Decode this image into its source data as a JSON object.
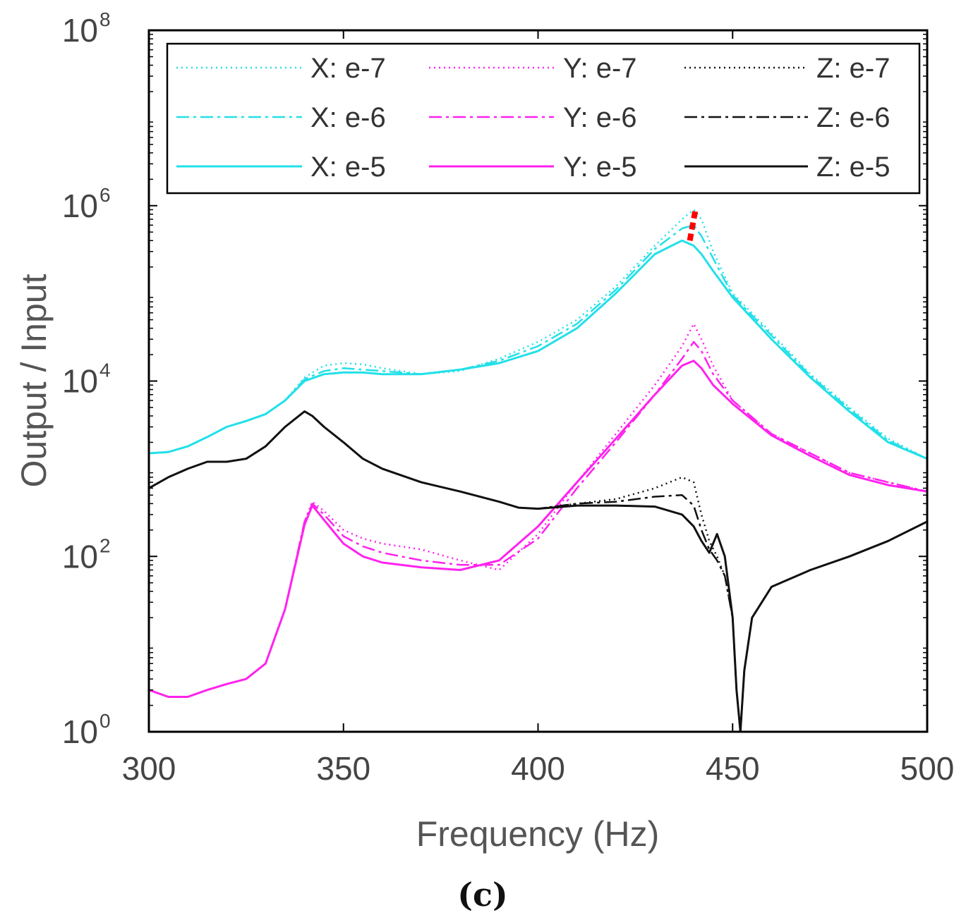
{
  "chart_data": {
    "type": "line",
    "title": "",
    "caption": "(c)",
    "xlabel": "Frequency (Hz)",
    "ylabel": "Output / Input",
    "xlim": [
      300,
      500
    ],
    "ylim": [
      1,
      100000000
    ],
    "yscale": "log",
    "xticks": [
      "300",
      "350",
      "400",
      "450",
      "500"
    ],
    "yticks": [
      {
        "base": "10",
        "exp": "0",
        "value": 1
      },
      {
        "base": "10",
        "exp": "2",
        "value": 100
      },
      {
        "base": "10",
        "exp": "4",
        "value": 10000
      },
      {
        "base": "10",
        "exp": "6",
        "value": 1000000
      },
      {
        "base": "10",
        "exp": "8",
        "value": 100000000
      }
    ],
    "grid": false,
    "legend_position": "top",
    "colors": {
      "X": "#22e0e8",
      "Y": "#ff22ee",
      "Z": "#111111",
      "marker": "#ff0000",
      "axis": "#000000"
    },
    "series": [
      {
        "name": "X: e-7",
        "axis": "X",
        "style": "dotted",
        "x": [
          300,
          305,
          310,
          315,
          320,
          325,
          330,
          335,
          340,
          345,
          350,
          355,
          360,
          370,
          380,
          390,
          400,
          410,
          420,
          430,
          437,
          440,
          442,
          445,
          450,
          460,
          470,
          480,
          490,
          500
        ],
        "y": [
          1500,
          1550,
          1800,
          2300,
          3000,
          3500,
          4200,
          6000,
          11000,
          15000,
          16000,
          15500,
          14000,
          12000,
          13000,
          18000,
          28000,
          50000,
          120000,
          350000,
          700000,
          900000,
          700000,
          300000,
          100000,
          35000,
          12000,
          5000,
          2200,
          1300
        ]
      },
      {
        "name": "X: e-6",
        "axis": "X",
        "style": "dashdot",
        "x": [
          300,
          305,
          310,
          315,
          320,
          325,
          330,
          335,
          340,
          345,
          350,
          355,
          360,
          370,
          380,
          390,
          400,
          410,
          420,
          430,
          437,
          440,
          442,
          445,
          450,
          460,
          470,
          480,
          490,
          500
        ],
        "y": [
          1500,
          1550,
          1800,
          2300,
          3000,
          3500,
          4200,
          6000,
          10500,
          13000,
          14000,
          13500,
          13000,
          12000,
          13500,
          17000,
          25000,
          45000,
          110000,
          320000,
          550000,
          600000,
          450000,
          250000,
          95000,
          33000,
          11500,
          4800,
          2100,
          1300
        ]
      },
      {
        "name": "X: e-5",
        "axis": "X",
        "style": "solid",
        "x": [
          300,
          305,
          310,
          315,
          320,
          325,
          330,
          335,
          340,
          345,
          350,
          355,
          360,
          370,
          380,
          390,
          400,
          410,
          420,
          430,
          437,
          440,
          442,
          445,
          450,
          460,
          470,
          480,
          490,
          500
        ],
        "y": [
          1500,
          1550,
          1800,
          2300,
          3000,
          3500,
          4200,
          6000,
          10000,
          12000,
          12500,
          12500,
          12000,
          12000,
          13500,
          16000,
          22000,
          40000,
          100000,
          280000,
          400000,
          350000,
          280000,
          180000,
          90000,
          30000,
          11000,
          4500,
          2000,
          1300
        ]
      },
      {
        "name": "Y: e-7",
        "axis": "Y",
        "style": "dotted",
        "x": [
          300,
          305,
          310,
          315,
          320,
          325,
          330,
          335,
          340,
          342,
          345,
          350,
          355,
          360,
          370,
          380,
          390,
          400,
          410,
          420,
          430,
          437,
          440,
          442,
          445,
          450,
          460,
          470,
          480,
          490,
          500
        ],
        "y": [
          3,
          2.5,
          2.5,
          3,
          3.5,
          4,
          6,
          25,
          250,
          420,
          330,
          200,
          160,
          140,
          120,
          90,
          70,
          180,
          700,
          2500,
          9000,
          25000,
          45000,
          30000,
          15000,
          6000,
          2500,
          1500,
          900,
          700,
          550
        ]
      },
      {
        "name": "Y: e-6",
        "axis": "Y",
        "style": "dashdot",
        "x": [
          300,
          305,
          310,
          315,
          320,
          325,
          330,
          335,
          340,
          342,
          345,
          350,
          355,
          360,
          370,
          380,
          390,
          400,
          410,
          420,
          430,
          437,
          440,
          442,
          445,
          450,
          460,
          470,
          480,
          490,
          500
        ],
        "y": [
          3,
          2.5,
          2.5,
          3,
          3.5,
          4,
          6,
          25,
          250,
          400,
          300,
          170,
          130,
          110,
          90,
          80,
          80,
          160,
          600,
          2000,
          7000,
          18000,
          28000,
          22000,
          12000,
          6000,
          2500,
          1500,
          900,
          700,
          550
        ]
      },
      {
        "name": "Y: e-5",
        "axis": "Y",
        "style": "solid",
        "x": [
          300,
          305,
          310,
          315,
          320,
          325,
          330,
          335,
          340,
          342,
          345,
          350,
          355,
          360,
          370,
          380,
          390,
          400,
          410,
          420,
          430,
          437,
          440,
          442,
          445,
          450,
          460,
          470,
          480,
          490,
          500
        ],
        "y": [
          3,
          2.5,
          2.5,
          3,
          3.5,
          4,
          6,
          25,
          230,
          380,
          260,
          140,
          100,
          85,
          75,
          70,
          90,
          220,
          700,
          2200,
          7000,
          15000,
          17000,
          14000,
          9000,
          5500,
          2400,
          1400,
          850,
          650,
          550
        ]
      },
      {
        "name": "Z: e-7",
        "axis": "Z",
        "style": "dotted",
        "x": [
          300,
          305,
          310,
          315,
          320,
          325,
          330,
          335,
          340,
          342,
          345,
          350,
          355,
          360,
          370,
          380,
          390,
          395,
          400,
          410,
          420,
          430,
          437,
          440,
          442,
          444,
          446,
          448,
          450,
          451,
          452,
          453,
          455,
          460,
          470,
          480,
          490,
          500
        ],
        "y": [
          600,
          800,
          1000,
          1200,
          1200,
          1300,
          1800,
          3000,
          4500,
          4000,
          3000,
          2000,
          1300,
          1000,
          700,
          550,
          420,
          360,
          350,
          400,
          450,
          600,
          800,
          700,
          300,
          150,
          100,
          60,
          20,
          3,
          1,
          5,
          20,
          45,
          70,
          100,
          150,
          250
        ]
      },
      {
        "name": "Z: e-6",
        "axis": "Z",
        "style": "dashdot",
        "x": [
          300,
          305,
          310,
          315,
          320,
          325,
          330,
          335,
          340,
          342,
          345,
          350,
          355,
          360,
          370,
          380,
          390,
          395,
          400,
          410,
          420,
          430,
          437,
          440,
          442,
          444,
          446,
          448,
          450,
          451,
          452,
          453,
          455,
          460,
          470,
          480,
          490,
          500
        ],
        "y": [
          600,
          800,
          1000,
          1200,
          1200,
          1300,
          1800,
          3000,
          4500,
          4000,
          3000,
          2000,
          1300,
          1000,
          700,
          550,
          420,
          360,
          350,
          400,
          420,
          480,
          500,
          380,
          200,
          120,
          90,
          60,
          20,
          3,
          1,
          5,
          20,
          45,
          70,
          100,
          150,
          250
        ]
      },
      {
        "name": "Z: e-5",
        "axis": "Z",
        "style": "solid",
        "x": [
          300,
          305,
          310,
          315,
          320,
          325,
          330,
          335,
          340,
          342,
          345,
          350,
          355,
          360,
          370,
          380,
          390,
          395,
          400,
          410,
          420,
          430,
          437,
          440,
          442,
          444,
          446,
          448,
          450,
          451,
          452,
          453,
          455,
          460,
          470,
          480,
          490,
          500
        ],
        "y": [
          600,
          800,
          1000,
          1200,
          1200,
          1300,
          1800,
          3000,
          4500,
          4000,
          3000,
          2000,
          1300,
          1000,
          700,
          550,
          420,
          360,
          350,
          380,
          380,
          370,
          300,
          220,
          150,
          110,
          180,
          100,
          20,
          3,
          1,
          5,
          20,
          45,
          70,
          100,
          150,
          250
        ]
      }
    ],
    "annotation": {
      "type": "red-dotted-marker",
      "x": 439,
      "y_from": 400000,
      "y_to": 900000
    }
  }
}
